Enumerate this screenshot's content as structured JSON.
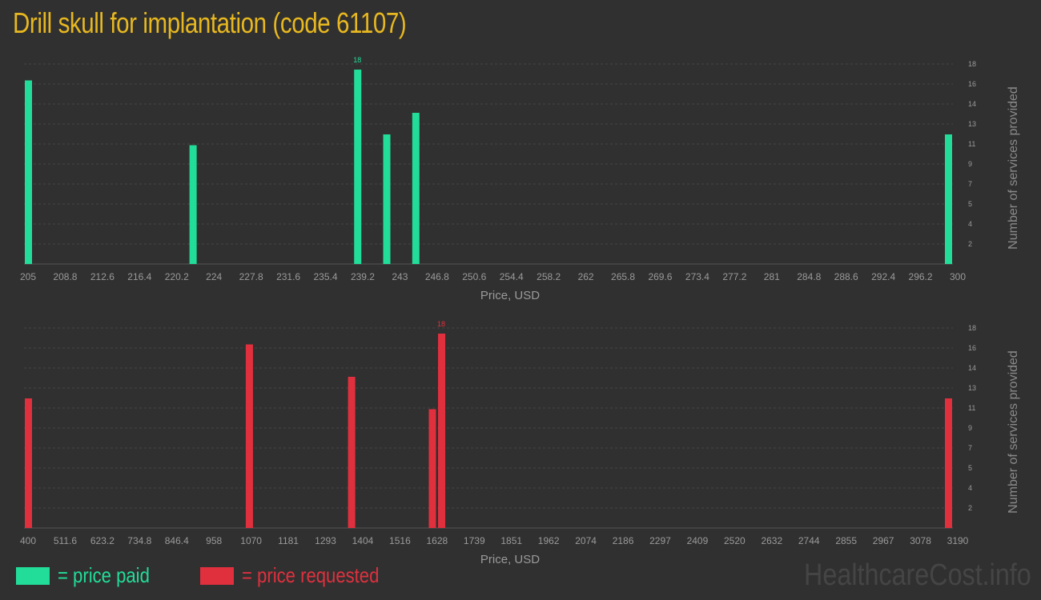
{
  "title": "Drill skull for implantation (code 61107)",
  "colors": {
    "paid": "#22dd99",
    "requested": "#e0303e",
    "title": "#e8b820"
  },
  "chart_data": [
    {
      "type": "bar",
      "series_key": "paid",
      "xlabel": "Price, USD",
      "ylabel": "Number of services provided",
      "xlim": [
        205,
        300
      ],
      "ylim": [
        0,
        20
      ],
      "x_ticks": [
        "205",
        "208.8",
        "212.6",
        "216.4",
        "220.2",
        "224",
        "227.8",
        "231.6",
        "235.4",
        "239.2",
        "243",
        "246.8",
        "250.6",
        "254.4",
        "258.2",
        "262",
        "265.8",
        "269.6",
        "273.4",
        "277.2",
        "281",
        "284.8",
        "288.6",
        "292.4",
        "296.2",
        "300"
      ],
      "y_ticks": [
        "2",
        "4",
        "5",
        "7",
        "9",
        "11",
        "13",
        "14",
        "16",
        "18"
      ],
      "bars": [
        {
          "x": 205,
          "y": 17
        },
        {
          "x": 222,
          "y": 11
        },
        {
          "x": 239,
          "y": 18,
          "label": "18"
        },
        {
          "x": 242,
          "y": 12
        },
        {
          "x": 245,
          "y": 14
        },
        {
          "x": 300,
          "y": 12
        }
      ]
    },
    {
      "type": "bar",
      "series_key": "requested",
      "xlabel": "Price, USD",
      "ylabel": "Number of services provided",
      "xlim": [
        400,
        3190
      ],
      "ylim": [
        0,
        20
      ],
      "x_ticks": [
        "400",
        "511.6",
        "623.2",
        "734.8",
        "846.4",
        "958",
        "1070",
        "1181",
        "1293",
        "1404",
        "1516",
        "1628",
        "1739",
        "1851",
        "1962",
        "2074",
        "2186",
        "2297",
        "2409",
        "2520",
        "2632",
        "2744",
        "2855",
        "2967",
        "3078",
        "3190"
      ],
      "y_ticks": [
        "2",
        "4",
        "5",
        "7",
        "9",
        "11",
        "13",
        "14",
        "16",
        "18"
      ],
      "bars": [
        {
          "x": 400,
          "y": 12
        },
        {
          "x": 1070,
          "y": 17
        },
        {
          "x": 1380,
          "y": 14
        },
        {
          "x": 1625,
          "y": 11
        },
        {
          "x": 1653,
          "y": 18,
          "label": "18"
        },
        {
          "x": 3190,
          "y": 12
        }
      ]
    }
  ],
  "legend": {
    "paid": "= price paid",
    "requested": "= price requested"
  },
  "brand": "HealthcareCost.info"
}
